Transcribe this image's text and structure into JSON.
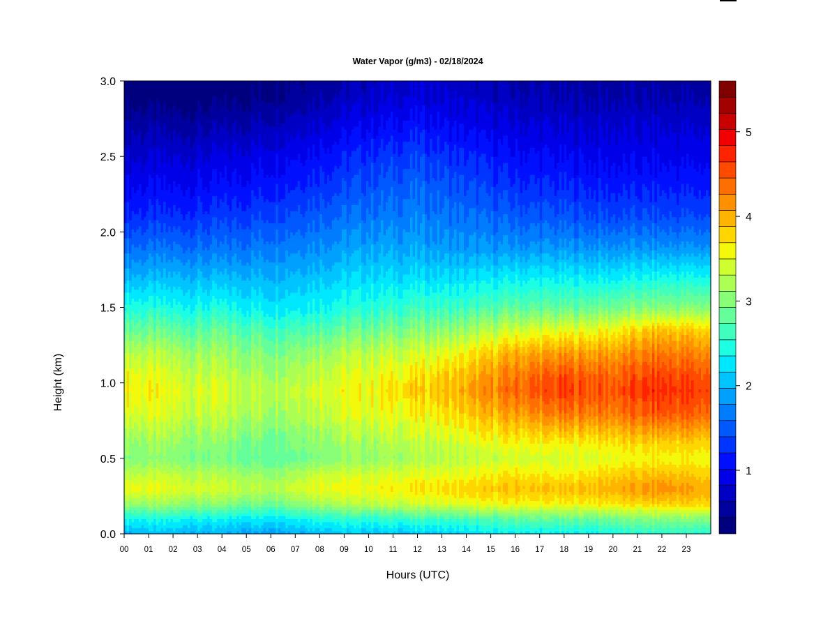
{
  "chart_data": {
    "type": "heatmap",
    "title": "Water Vapor (g/m3) - 02/18/2024",
    "xlabel": "Hours (UTC)",
    "ylabel": "Height (km)",
    "x_ticks": [
      "00",
      "01",
      "02",
      "03",
      "04",
      "05",
      "06",
      "07",
      "08",
      "09",
      "10",
      "11",
      "12",
      "13",
      "14",
      "15",
      "16",
      "17",
      "18",
      "19",
      "20",
      "21",
      "22",
      "23"
    ],
    "xlim": [
      0,
      24
    ],
    "y_ticks": [
      "0.0",
      "0.5",
      "1.0",
      "1.5",
      "2.0",
      "2.5",
      "3.0"
    ],
    "ylim": [
      0.0,
      3.0
    ],
    "colorbar": {
      "ticks": [
        "1",
        "2",
        "3",
        "4",
        "5"
      ],
      "range": [
        0.25,
        5.6
      ],
      "colors": [
        "#00007f",
        "#00009f",
        "#0000c4",
        "#0000e8",
        "#0010ff",
        "#0034ff",
        "#0058ff",
        "#007cff",
        "#00a0ff",
        "#00c4ff",
        "#00e8ff",
        "#1cffe2",
        "#40ffbe",
        "#64ff9a",
        "#88ff77",
        "#acff53",
        "#d0ff2f",
        "#f4f80b",
        "#ffd600",
        "#ffb400",
        "#ff9100",
        "#ff6e00",
        "#ff4a00",
        "#ff2400",
        "#f00000",
        "#c80000",
        "#a30000",
        "#800000"
      ]
    },
    "heights_km": [
      0.0,
      0.1,
      0.2,
      0.3,
      0.4,
      0.5,
      0.6,
      0.8,
      0.95,
      1.05,
      1.2,
      1.35,
      1.5,
      1.7,
      1.9,
      2.1,
      2.3,
      2.5,
      2.7,
      2.9,
      3.0
    ],
    "time_hours": [
      0,
      2,
      4,
      6,
      8,
      10,
      12,
      14,
      16,
      18,
      20,
      22,
      24
    ],
    "values": [
      [
        2.0,
        2.0,
        1.95,
        1.9,
        2.05,
        2.1,
        2.1,
        2.2,
        2.3,
        2.3,
        2.4,
        2.5,
        2.5
      ],
      [
        2.4,
        2.4,
        2.3,
        2.3,
        2.5,
        2.5,
        2.6,
        2.6,
        2.8,
        2.8,
        2.9,
        3.0,
        3.0
      ],
      [
        3.1,
        3.1,
        3.0,
        2.9,
        3.2,
        3.3,
        3.4,
        3.5,
        3.6,
        3.6,
        3.7,
        3.8,
        3.8
      ],
      [
        3.6,
        3.5,
        3.4,
        3.3,
        3.6,
        3.6,
        3.7,
        3.8,
        3.9,
        3.9,
        4.0,
        4.2,
        4.0
      ],
      [
        3.3,
        3.3,
        3.2,
        3.1,
        3.4,
        3.4,
        3.5,
        3.5,
        3.7,
        3.6,
        3.8,
        3.9,
        3.8
      ],
      [
        3.0,
        3.0,
        2.9,
        2.8,
        3.0,
        3.1,
        3.2,
        3.3,
        3.4,
        3.4,
        3.5,
        3.6,
        3.6
      ],
      [
        3.1,
        3.1,
        3.0,
        2.9,
        3.1,
        3.2,
        3.3,
        3.4,
        3.6,
        3.6,
        3.7,
        3.8,
        3.8
      ],
      [
        3.5,
        3.4,
        3.3,
        3.2,
        3.4,
        3.5,
        3.6,
        3.8,
        4.1,
        4.3,
        4.3,
        4.5,
        4.4
      ],
      [
        3.7,
        3.5,
        3.4,
        3.3,
        3.5,
        3.6,
        3.8,
        4.0,
        4.4,
        4.6,
        4.5,
        4.7,
        4.6
      ],
      [
        3.6,
        3.4,
        3.3,
        3.2,
        3.4,
        3.5,
        3.7,
        3.9,
        4.3,
        4.5,
        4.4,
        4.6,
        4.5
      ],
      [
        3.3,
        3.2,
        3.1,
        3.0,
        3.2,
        3.3,
        3.4,
        3.6,
        4.0,
        4.1,
        4.1,
        4.3,
        4.2
      ],
      [
        2.9,
        2.8,
        2.8,
        2.7,
        2.8,
        2.9,
        3.0,
        3.1,
        3.4,
        3.5,
        3.6,
        3.9,
        3.8
      ],
      [
        2.5,
        2.4,
        2.4,
        2.3,
        2.4,
        2.5,
        2.6,
        2.6,
        2.8,
        2.8,
        2.9,
        3.0,
        3.0
      ],
      [
        2.0,
        2.0,
        2.0,
        2.0,
        2.1,
        2.2,
        2.2,
        2.2,
        2.3,
        2.3,
        2.3,
        2.4,
        2.4
      ],
      [
        1.6,
        1.6,
        1.6,
        1.7,
        1.8,
        1.9,
        1.9,
        1.8,
        1.8,
        1.8,
        1.8,
        1.8,
        1.8
      ],
      [
        1.25,
        1.25,
        1.3,
        1.4,
        1.55,
        1.65,
        1.7,
        1.6,
        1.5,
        1.45,
        1.4,
        1.4,
        1.4
      ],
      [
        1.0,
        1.0,
        1.05,
        1.15,
        1.3,
        1.45,
        1.55,
        1.4,
        1.25,
        1.2,
        1.15,
        1.15,
        1.15
      ],
      [
        0.8,
        0.8,
        0.85,
        0.95,
        1.1,
        1.25,
        1.35,
        1.2,
        1.05,
        1.0,
        0.95,
        0.95,
        0.95
      ],
      [
        0.6,
        0.55,
        0.6,
        0.7,
        0.85,
        1.0,
        1.1,
        0.95,
        0.85,
        0.8,
        0.8,
        0.8,
        0.8
      ],
      [
        0.35,
        0.3,
        0.35,
        0.45,
        0.6,
        0.75,
        0.85,
        0.75,
        0.65,
        0.6,
        0.6,
        0.6,
        0.6
      ],
      [
        0.3,
        0.25,
        0.3,
        0.4,
        0.55,
        0.7,
        0.8,
        0.7,
        0.6,
        0.55,
        0.55,
        0.55,
        0.55
      ]
    ],
    "colorbar_position": "right",
    "grid": false,
    "legend": "none"
  }
}
